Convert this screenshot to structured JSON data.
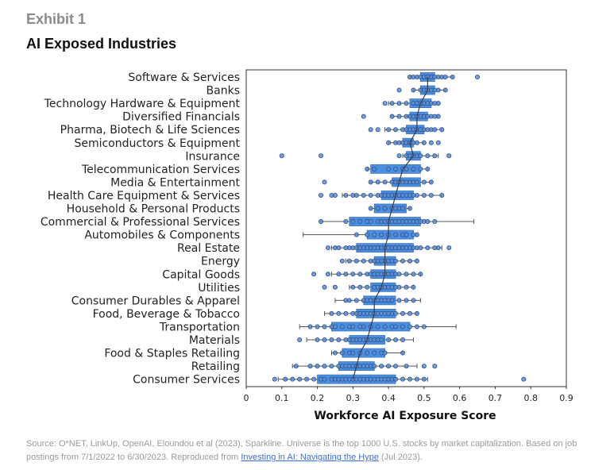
{
  "header": {
    "exhibit": "Exhibit 1",
    "title": "AI Exposed Industries"
  },
  "footer": {
    "source_text": "Source: O*NET, LinkUp, OpenAI, Eloundou et al (2023), Sparkline. Universe is the top 1000 U.S. stocks by market capitalization. Based on job postings from 7/1/2022 to 6/30/2023. Reproduced from ",
    "link_text": "Investing in AI: Navigating the Hype",
    "source_suffix": " (Jul 2023)."
  },
  "colors": {
    "box_fill": "#4a90e2",
    "box_edge": "#3c6fb8",
    "point_fill": "#5b8ed4",
    "point_edge": "#2e4f8a",
    "whisker": "#555555",
    "median_line": "#3a3a3a"
  },
  "chart_data": {
    "type": "boxplot",
    "title": "AI Exposed Industries",
    "xlabel": "Workforce AI Exposure Score",
    "ylabel": "",
    "xlim": [
      0,
      0.9
    ],
    "xticks": [
      0,
      0.1,
      0.2,
      0.3,
      0.4,
      0.5,
      0.6,
      0.7,
      0.8,
      0.9
    ],
    "xtick_labels": [
      "0",
      "0.1",
      "0.2",
      "0.3",
      "0.4",
      "0.5",
      "0.6",
      "0.7",
      "0.8",
      "0.9"
    ],
    "grid": false,
    "sorted_by": "median, descending",
    "categories": [
      {
        "name": "Software & Services",
        "min": 0.46,
        "q1": 0.49,
        "median": 0.51,
        "q3": 0.53,
        "max": 0.58,
        "points": [
          0.46,
          0.47,
          0.48,
          0.49,
          0.5,
          0.51,
          0.51,
          0.52,
          0.53,
          0.54,
          0.55,
          0.56,
          0.58,
          0.65
        ]
      },
      {
        "name": "Banks",
        "min": 0.47,
        "q1": 0.49,
        "median": 0.51,
        "q3": 0.53,
        "max": 0.56,
        "points": [
          0.43,
          0.47,
          0.49,
          0.5,
          0.51,
          0.52,
          0.53,
          0.54,
          0.56
        ]
      },
      {
        "name": "Technology Hardware & Equipment",
        "min": 0.4,
        "q1": 0.46,
        "median": 0.49,
        "q3": 0.52,
        "max": 0.54,
        "points": [
          0.39,
          0.41,
          0.43,
          0.45,
          0.47,
          0.48,
          0.49,
          0.5,
          0.51,
          0.52,
          0.53,
          0.54
        ]
      },
      {
        "name": "Diversified Financials",
        "min": 0.41,
        "q1": 0.46,
        "median": 0.48,
        "q3": 0.51,
        "max": 0.54,
        "points": [
          0.33,
          0.41,
          0.43,
          0.45,
          0.46,
          0.47,
          0.48,
          0.49,
          0.5,
          0.51,
          0.52,
          0.53,
          0.54
        ]
      },
      {
        "name": "Pharma, Biotech & Life Sciences",
        "min": 0.39,
        "q1": 0.45,
        "median": 0.48,
        "q3": 0.5,
        "max": 0.55,
        "points": [
          0.35,
          0.37,
          0.4,
          0.42,
          0.44,
          0.45,
          0.46,
          0.47,
          0.48,
          0.49,
          0.5,
          0.51,
          0.52,
          0.53,
          0.55
        ]
      },
      {
        "name": "Semiconductors & Equipment",
        "min": 0.4,
        "q1": 0.44,
        "median": 0.46,
        "q3": 0.47,
        "max": 0.5,
        "points": [
          0.4,
          0.42,
          0.43,
          0.44,
          0.45,
          0.46,
          0.47,
          0.48,
          0.5,
          0.52,
          0.54
        ]
      },
      {
        "name": "Insurance",
        "min": 0.44,
        "q1": 0.45,
        "median": 0.47,
        "q3": 0.49,
        "max": 0.54,
        "points": [
          0.1,
          0.21,
          0.43,
          0.45,
          0.46,
          0.47,
          0.48,
          0.49,
          0.51,
          0.53,
          0.57
        ]
      },
      {
        "name": "Telecommunication Services",
        "min": 0.34,
        "q1": 0.35,
        "median": 0.44,
        "q3": 0.49,
        "max": 0.51,
        "points": [
          0.34,
          0.36,
          0.4,
          0.42,
          0.44,
          0.45,
          0.47,
          0.49,
          0.51
        ]
      },
      {
        "name": "Media & Entertainment",
        "min": 0.35,
        "q1": 0.41,
        "median": 0.43,
        "q3": 0.49,
        "max": 0.52,
        "points": [
          0.22,
          0.35,
          0.37,
          0.39,
          0.41,
          0.42,
          0.43,
          0.44,
          0.45,
          0.46,
          0.47,
          0.48,
          0.5,
          0.52
        ]
      },
      {
        "name": "Health Care Equipment & Services",
        "min": 0.27,
        "q1": 0.38,
        "median": 0.42,
        "q3": 0.47,
        "max": 0.55,
        "points": [
          0.21,
          0.24,
          0.25,
          0.28,
          0.3,
          0.31,
          0.33,
          0.35,
          0.37,
          0.38,
          0.39,
          0.4,
          0.41,
          0.42,
          0.43,
          0.44,
          0.45,
          0.46,
          0.47,
          0.48,
          0.5,
          0.52,
          0.55
        ]
      },
      {
        "name": "Household & Personal Products",
        "min": 0.35,
        "q1": 0.36,
        "median": 0.41,
        "q3": 0.45,
        "max": 0.46,
        "points": [
          0.35,
          0.37,
          0.39,
          0.41,
          0.42,
          0.43,
          0.44,
          0.46
        ]
      },
      {
        "name": "Commercial & Professional Services",
        "min": 0.21,
        "q1": 0.29,
        "median": 0.4,
        "q3": 0.49,
        "max": 0.64,
        "points": [
          0.21,
          0.28,
          0.3,
          0.32,
          0.34,
          0.35,
          0.37,
          0.38,
          0.39,
          0.4,
          0.41,
          0.42,
          0.43,
          0.44,
          0.45,
          0.46,
          0.47,
          0.48,
          0.49,
          0.5,
          0.51,
          0.53
        ]
      },
      {
        "name": "Automobiles & Components",
        "min": 0.16,
        "q1": 0.34,
        "median": 0.4,
        "q3": 0.47,
        "max": 0.48,
        "points": [
          0.31,
          0.34,
          0.36,
          0.38,
          0.4,
          0.42,
          0.44,
          0.45,
          0.47,
          0.48
        ]
      },
      {
        "name": "Real Estate",
        "min": 0.24,
        "q1": 0.31,
        "median": 0.39,
        "q3": 0.47,
        "max": 0.55,
        "points": [
          0.23,
          0.25,
          0.26,
          0.28,
          0.29,
          0.3,
          0.31,
          0.32,
          0.33,
          0.34,
          0.35,
          0.36,
          0.37,
          0.38,
          0.39,
          0.4,
          0.41,
          0.42,
          0.43,
          0.44,
          0.45,
          0.46,
          0.47,
          0.48,
          0.49,
          0.51,
          0.53,
          0.54,
          0.57
        ]
      },
      {
        "name": "Energy",
        "min": 0.28,
        "q1": 0.36,
        "median": 0.39,
        "q3": 0.42,
        "max": 0.48,
        "points": [
          0.27,
          0.29,
          0.31,
          0.33,
          0.35,
          0.36,
          0.37,
          0.38,
          0.39,
          0.4,
          0.41,
          0.42,
          0.44,
          0.46,
          0.48
        ]
      },
      {
        "name": "Capital Goods",
        "min": 0.24,
        "q1": 0.35,
        "median": 0.39,
        "q3": 0.42,
        "max": 0.49,
        "points": [
          0.19,
          0.23,
          0.26,
          0.28,
          0.3,
          0.32,
          0.34,
          0.35,
          0.36,
          0.37,
          0.38,
          0.39,
          0.4,
          0.41,
          0.42,
          0.43,
          0.45,
          0.47,
          0.49
        ]
      },
      {
        "name": "Utilities",
        "min": 0.29,
        "q1": 0.35,
        "median": 0.38,
        "q3": 0.42,
        "max": 0.47,
        "points": [
          0.22,
          0.25,
          0.3,
          0.32,
          0.34,
          0.36,
          0.37,
          0.38,
          0.39,
          0.4,
          0.41,
          0.42,
          0.43,
          0.45,
          0.47
        ]
      },
      {
        "name": "Consumer Durables & Apparel",
        "min": 0.25,
        "q1": 0.33,
        "median": 0.36,
        "q3": 0.42,
        "max": 0.49,
        "points": [
          0.28,
          0.29,
          0.31,
          0.33,
          0.34,
          0.35,
          0.36,
          0.37,
          0.38,
          0.39,
          0.4,
          0.41,
          0.43,
          0.45,
          0.47
        ]
      },
      {
        "name": "Food, Beverage & Tobacco",
        "min": 0.22,
        "q1": 0.31,
        "median": 0.36,
        "q3": 0.42,
        "max": 0.48,
        "points": [
          0.24,
          0.26,
          0.28,
          0.3,
          0.31,
          0.32,
          0.33,
          0.34,
          0.35,
          0.36,
          0.37,
          0.38,
          0.39,
          0.4,
          0.41,
          0.42,
          0.44,
          0.46,
          0.48
        ]
      },
      {
        "name": "Transportation",
        "min": 0.15,
        "q1": 0.24,
        "median": 0.35,
        "q3": 0.46,
        "max": 0.59,
        "points": [
          0.18,
          0.2,
          0.22,
          0.24,
          0.25,
          0.27,
          0.29,
          0.3,
          0.32,
          0.33,
          0.35,
          0.37,
          0.39,
          0.41,
          0.42,
          0.44,
          0.46,
          0.48,
          0.5
        ]
      },
      {
        "name": "Materials",
        "min": 0.17,
        "q1": 0.29,
        "median": 0.34,
        "q3": 0.39,
        "max": 0.47,
        "points": [
          0.15,
          0.2,
          0.22,
          0.24,
          0.26,
          0.28,
          0.29,
          0.3,
          0.31,
          0.32,
          0.33,
          0.34,
          0.35,
          0.36,
          0.37,
          0.38,
          0.4,
          0.42,
          0.44
        ]
      },
      {
        "name": "Food & Staples Retailing",
        "min": 0.24,
        "q1": 0.27,
        "median": 0.32,
        "q3": 0.39,
        "max": 0.44,
        "points": [
          0.25,
          0.27,
          0.29,
          0.3,
          0.32,
          0.34,
          0.36,
          0.38,
          0.39,
          0.44
        ]
      },
      {
        "name": "Retailing",
        "min": 0.13,
        "q1": 0.26,
        "median": 0.31,
        "q3": 0.36,
        "max": 0.48,
        "points": [
          0.14,
          0.18,
          0.2,
          0.22,
          0.24,
          0.26,
          0.27,
          0.28,
          0.29,
          0.3,
          0.31,
          0.32,
          0.33,
          0.34,
          0.35,
          0.36,
          0.38,
          0.4,
          0.42,
          0.45,
          0.5,
          0.53
        ]
      },
      {
        "name": "Consumer Services",
        "min": 0.09,
        "q1": 0.2,
        "median": 0.3,
        "q3": 0.42,
        "max": 0.51,
        "points": [
          0.08,
          0.11,
          0.13,
          0.15,
          0.17,
          0.19,
          0.21,
          0.22,
          0.24,
          0.25,
          0.26,
          0.27,
          0.28,
          0.29,
          0.3,
          0.31,
          0.32,
          0.33,
          0.34,
          0.35,
          0.36,
          0.37,
          0.38,
          0.39,
          0.4,
          0.41,
          0.42,
          0.44,
          0.46,
          0.48,
          0.5,
          0.78
        ]
      }
    ]
  }
}
